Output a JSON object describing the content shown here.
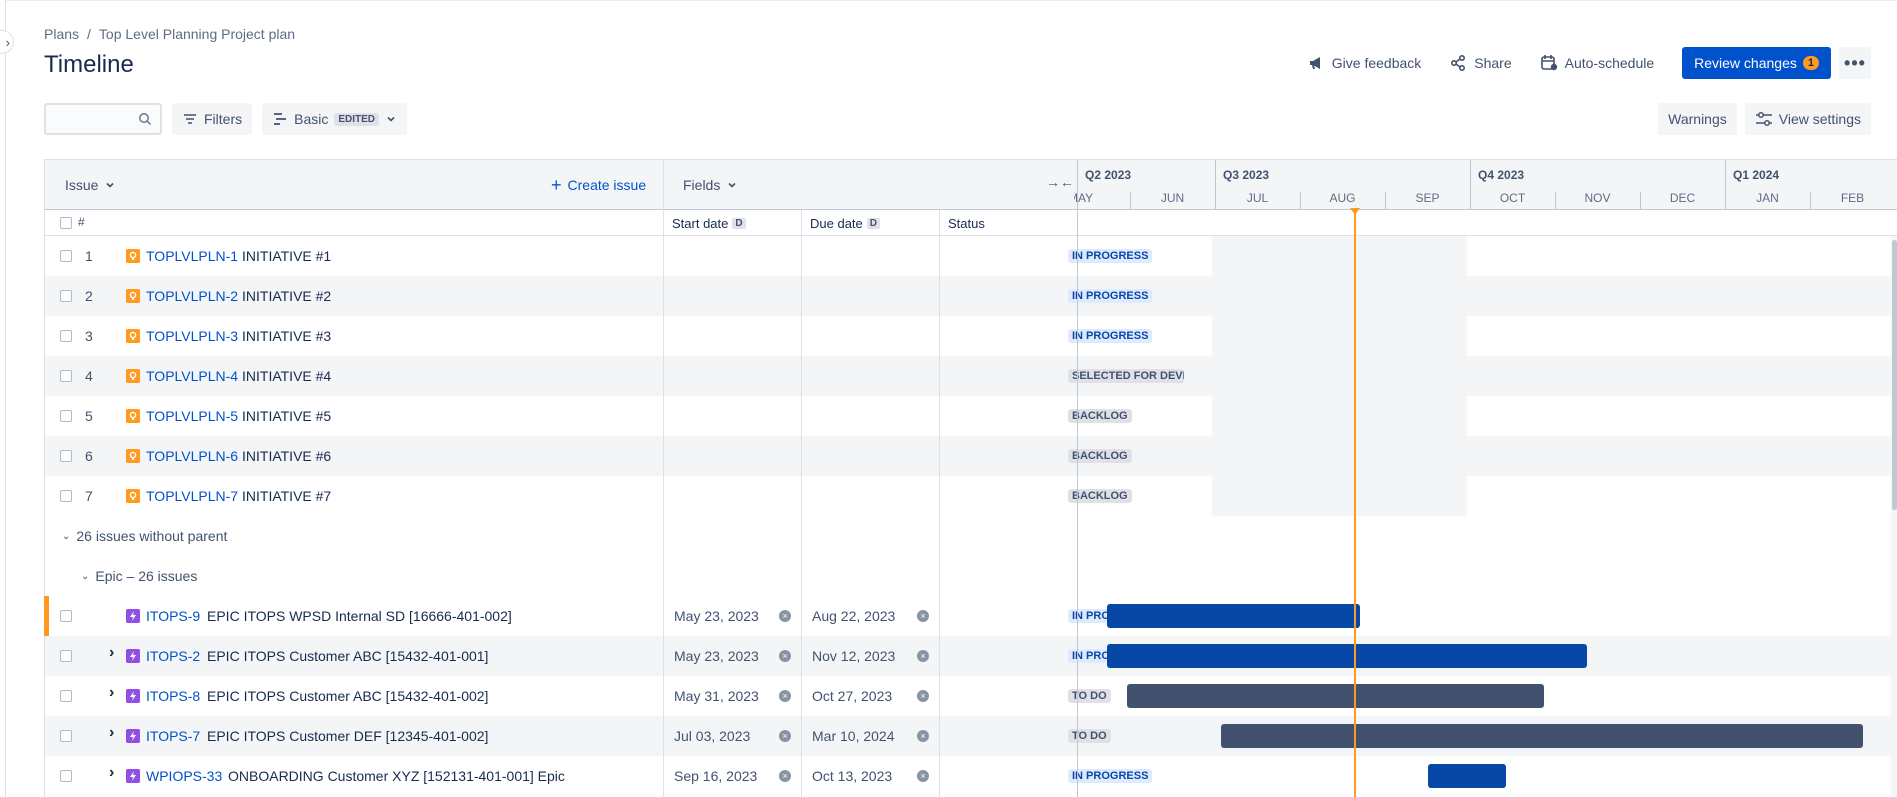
{
  "breadcrumb": {
    "root": "Plans",
    "separator": "/",
    "current": "Top Level Planning Project plan"
  },
  "page_title": "Timeline",
  "header": {
    "give_feedback": "Give feedback",
    "share": "Share",
    "auto_schedule": "Auto-schedule",
    "review_changes": "Review changes",
    "review_count": "1",
    "more": "•••"
  },
  "toolbar": {
    "search_placeholder": "",
    "filters": "Filters",
    "view": "Basic",
    "view_tag": "EDITED",
    "warnings": "Warnings",
    "view_settings": "View settings"
  },
  "grid": {
    "issue_header": "Issue",
    "create_issue": "Create issue",
    "fields_header": "Fields",
    "hash": "#",
    "start_date": "Start date",
    "due_date": "Due date",
    "date_badge": "D",
    "status": "Status"
  },
  "timeline": {
    "quarters": [
      "Q2 2023",
      "Q3 2023",
      "Q4 2023",
      "Q1 2024"
    ],
    "months": [
      "MAY",
      "JUN",
      "JUL",
      "AUG",
      "SEP",
      "OCT",
      "NOV",
      "DEC",
      "JAN",
      "FEB"
    ]
  },
  "initiatives": [
    {
      "num": "1",
      "key": "TOPLVLPLN-1",
      "title": "INITIATIVE #1",
      "status": "IN PROGRESS"
    },
    {
      "num": "2",
      "key": "TOPLVLPLN-2",
      "title": "INITIATIVE #2",
      "status": "IN PROGRESS"
    },
    {
      "num": "3",
      "key": "TOPLVLPLN-3",
      "title": "INITIATIVE #3",
      "status": "IN PROGRESS"
    },
    {
      "num": "4",
      "key": "TOPLVLPLN-4",
      "title": "INITIATIVE #4",
      "status": "SELECTED FOR DEVELOPMENT"
    },
    {
      "num": "5",
      "key": "TOPLVLPLN-5",
      "title": "INITIATIVE #5",
      "status": "BACKLOG"
    },
    {
      "num": "6",
      "key": "TOPLVLPLN-6",
      "title": "INITIATIVE #6",
      "status": "BACKLOG"
    },
    {
      "num": "7",
      "key": "TOPLVLPLN-7",
      "title": "INITIATIVE #7",
      "status": "BACKLOG"
    }
  ],
  "groups": {
    "no_parent": "26 issues without parent",
    "epic_group": "Epic – 26 issues"
  },
  "epics": [
    {
      "key": "ITOPS-9",
      "title": "EPIC ITOPS WPSD Internal SD [16666-401-002]",
      "start": "May 23, 2023",
      "due": "Aug 22, 2023",
      "status": "IN PROGRESS",
      "bar_start_month": 0.73,
      "bar_end_month": 3.71,
      "color": "#0747a6"
    },
    {
      "key": "ITOPS-2",
      "title": "EPIC ITOPS Customer ABC [15432-401-001]",
      "start": "May 23, 2023",
      "due": "Nov 12, 2023",
      "status": "IN PROGRESS",
      "bar_start_month": 0.73,
      "bar_end_month": 6.38,
      "color": "#0747a6"
    },
    {
      "key": "ITOPS-8",
      "title": "EPIC ITOPS Customer ABC [15432-401-002]",
      "start": "May 31, 2023",
      "due": "Oct 27, 2023",
      "status": "TO DO",
      "bar_start_month": 0.97,
      "bar_end_month": 5.87,
      "color": "#42526e"
    },
    {
      "key": "ITOPS-7",
      "title": "EPIC ITOPS Customer DEF [12345-401-002]",
      "start": "Jul 03, 2023",
      "due": "Mar 10, 2024",
      "status": "TO DO",
      "bar_start_month": 2.07,
      "bar_end_month": 9.62,
      "color": "#42526e"
    },
    {
      "key": "WPIOPS-33",
      "title": "ONBOARDING Customer XYZ [152131-401-001] Epic",
      "start": "Sep 16, 2023",
      "due": "Oct 13, 2023",
      "status": "IN PROGRESS",
      "bar_start_month": 4.5,
      "bar_end_month": 5.42,
      "color": "#0747a6"
    }
  ],
  "today_month": 3.63,
  "colors": {
    "accent": "#0052cc",
    "warning": "#ff991f",
    "epic": "#904ee2"
  }
}
